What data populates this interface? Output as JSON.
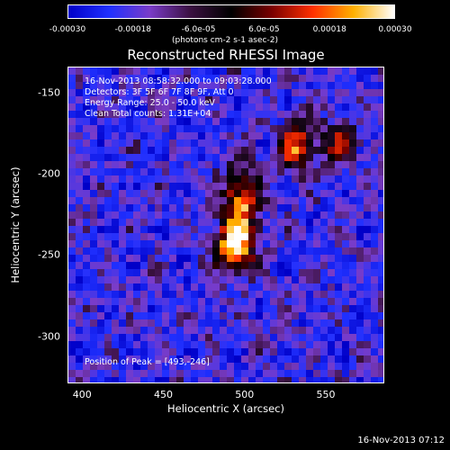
{
  "chart_data": {
    "type": "heatmap",
    "title": "Reconstructed RHESSI Image",
    "colorbar": {
      "ticks": [
        "-0.00030",
        "-0.00018",
        "-6.0e-05",
        "6.0e-05",
        "0.00018",
        "0.00030"
      ],
      "tick_values": [
        -0.0003,
        -0.00018,
        -6e-05,
        6e-05,
        0.00018,
        0.0003
      ],
      "range": [
        -0.0003,
        0.0003
      ],
      "label": "(photons cm-2 s-1 asec-2)",
      "colors": [
        "#0000c8",
        "#2030ff",
        "#7a3cc8",
        "#3a1040",
        "#000000",
        "#7a0000",
        "#ff3000",
        "#ffb000",
        "#ffffff"
      ]
    },
    "annotations": [
      "16-Nov-2013 08:58:32.000 to 09:03:28.000",
      "Detectors: 3F 5F 6F 7F 8F 9F, Att 0",
      "Energy Range: 25.0 - 50.0 keV",
      "Clean    Total counts: 1.31E+04"
    ],
    "peak_label": "Position of Peak = [493,-246]",
    "xlabel": "Heliocentric X (arcsec)",
    "ylabel": "Heliocentric Y (arcsec)",
    "x_ticks": [
      400,
      450,
      500,
      550
    ],
    "y_ticks": [
      -150,
      -200,
      -250,
      -300
    ],
    "xlim": [
      391,
      586
    ],
    "ylim": [
      -329,
      -134
    ],
    "sources": [
      {
        "x": 493,
        "y": -246,
        "intensity": 1.0
      },
      {
        "x": 497,
        "y": -218,
        "intensity": 0.85
      },
      {
        "x": 532,
        "y": -183,
        "intensity": 0.8
      },
      {
        "x": 558,
        "y": -180,
        "intensity": 0.55
      }
    ]
  },
  "footer_timestamp": "16-Nov-2013 07:12"
}
